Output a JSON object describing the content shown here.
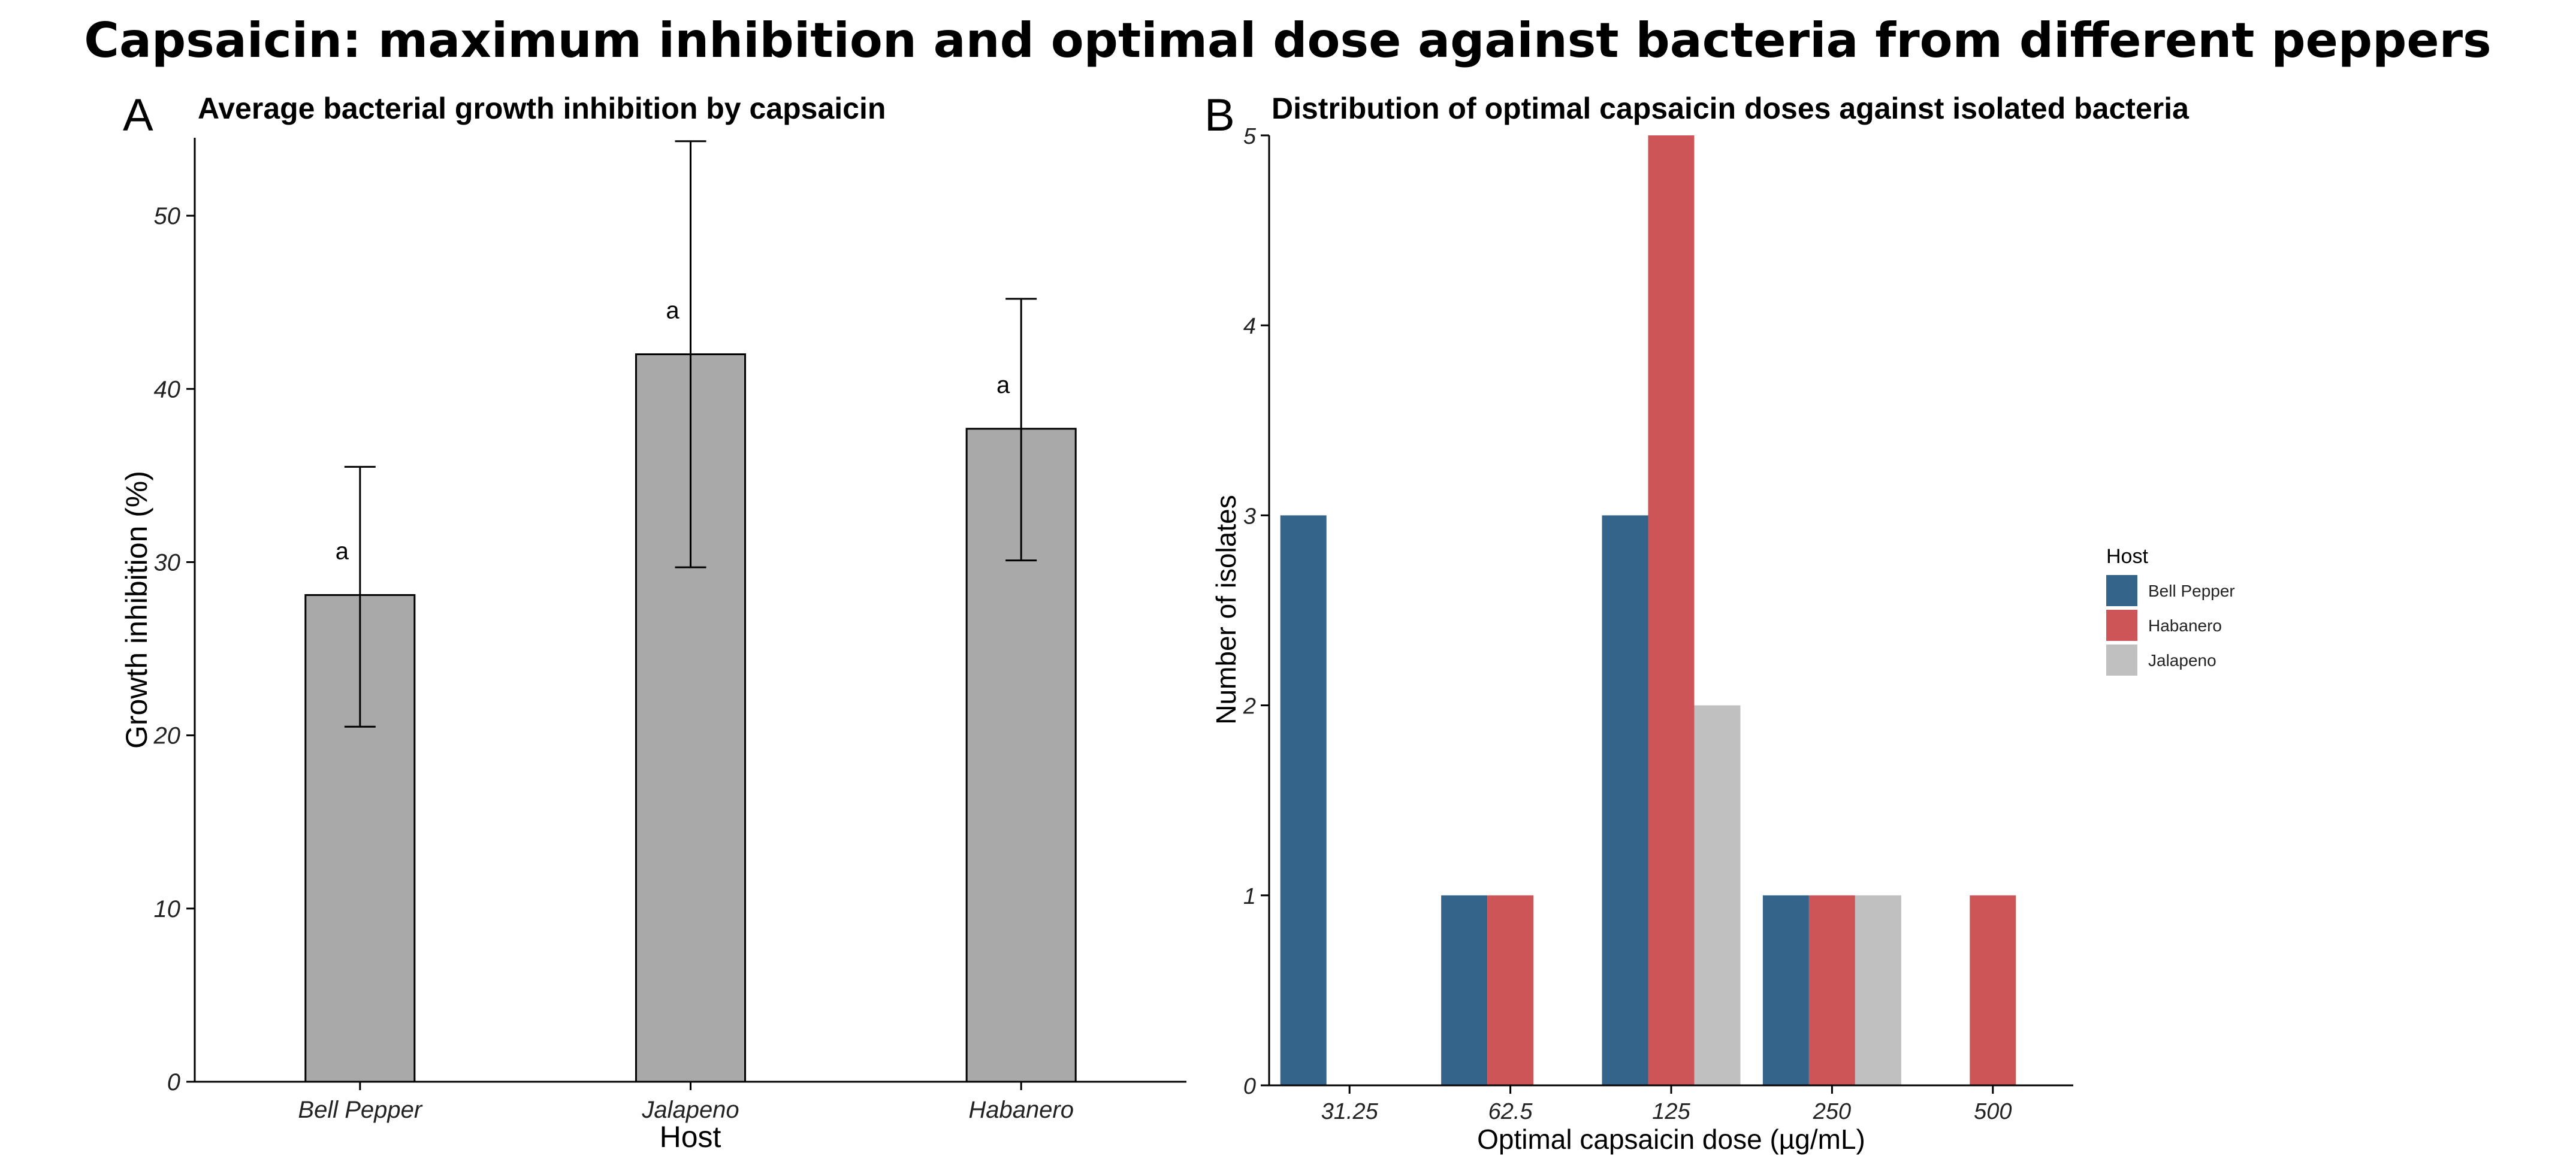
{
  "figure": {
    "title": "Capsaicin: maximum inhibition and optimal dose against bacteria from different peppers"
  },
  "colors": {
    "bar_gray": "#A9A9A9",
    "bell_pepper": "#35648A",
    "habanero": "#CD5557",
    "jalapeno": "#C0C0C0",
    "axis": "#000000"
  },
  "chart_data": [
    {
      "panel_letter": "A",
      "type": "bar",
      "title": "Average bacterial growth inhibition by capsaicin",
      "xlabel": "Host",
      "ylabel": "Growth inhibition (%)",
      "categories": [
        "Bell Pepper",
        "Jalapeno",
        "Habanero"
      ],
      "values": [
        28.1,
        42.0,
        37.7
      ],
      "error_low": [
        20.5,
        29.7,
        30.1
      ],
      "error_high": [
        35.5,
        54.3,
        45.2
      ],
      "significance_letters": [
        "a",
        "a",
        "a"
      ],
      "ylim": [
        0,
        54.5
      ],
      "yticks": [
        "0",
        "10",
        "20",
        "30",
        "40",
        "50"
      ],
      "grid": false
    },
    {
      "panel_letter": "B",
      "type": "bar",
      "title": "Distribution of optimal capsaicin doses against isolated bacteria",
      "xlabel": "Optimal capsaicin dose (µg/mL)",
      "ylabel": "Number of isolates",
      "categories": [
        "31.25",
        "62.5",
        "125",
        "250",
        "500"
      ],
      "series": [
        {
          "name": "Bell Pepper",
          "values": [
            3,
            1,
            3,
            1,
            0
          ]
        },
        {
          "name": "Habanero",
          "values": [
            0,
            1,
            5,
            1,
            1
          ]
        },
        {
          "name": "Jalapeno",
          "values": [
            0,
            0,
            2,
            1,
            0
          ]
        }
      ],
      "ylim": [
        0,
        5
      ],
      "yticks": [
        "0",
        "1",
        "2",
        "3",
        "4",
        "5"
      ],
      "legend_title": "Host",
      "legend_position": "right",
      "grid": false
    }
  ]
}
